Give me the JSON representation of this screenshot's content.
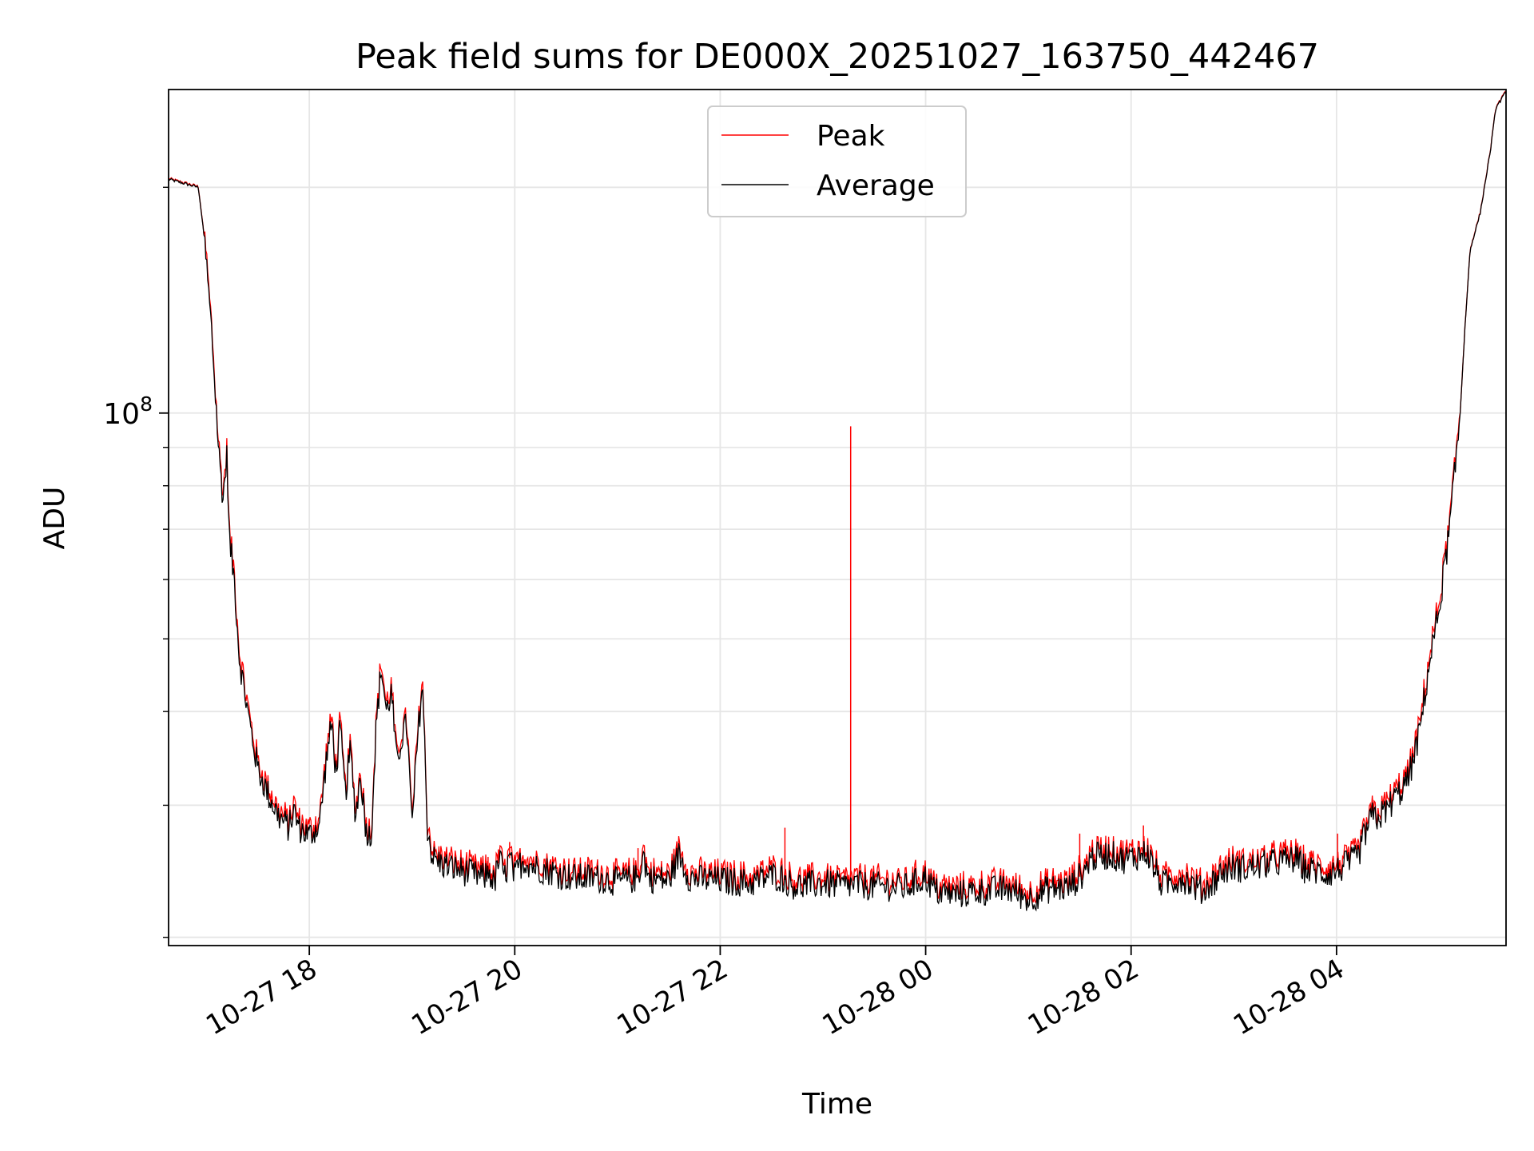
{
  "chart_data": {
    "type": "line",
    "title": "Peak field sums for DE000X_20251027_163750_442467",
    "xlabel": "Time",
    "ylabel": "ADU",
    "yscale": "log",
    "ylim": [
      19500000,
      270000000
    ],
    "grid": true,
    "legend": {
      "placement": "upper-center",
      "entries": [
        {
          "label": "Peak",
          "color": "#ff0000"
        },
        {
          "label": "Average",
          "color": "#000000"
        }
      ]
    },
    "x_unit": "hours since 2025-10-27 00:00",
    "xlim": [
      16.63,
      29.65
    ],
    "x_ticks": [
      {
        "value": 18,
        "label": "10-27 18"
      },
      {
        "value": 20,
        "label": "10-27 20"
      },
      {
        "value": 22,
        "label": "10-27 22"
      },
      {
        "value": 24,
        "label": "10-28 00"
      },
      {
        "value": 26,
        "label": "10-28 02"
      },
      {
        "value": 28,
        "label": "10-28 04"
      }
    ],
    "y_ticks": [
      {
        "value": 100000000,
        "base": "10",
        "exp": "8"
      }
    ],
    "y_minor_ticks": [
      20000000,
      30000000,
      40000000,
      50000000,
      60000000,
      70000000,
      80000000,
      90000000,
      200000000
    ],
    "series": [
      {
        "name": "Average",
        "color": "#000000",
        "x": [
          16.63,
          16.92,
          16.98,
          17.05,
          17.12,
          17.16,
          17.2,
          17.22,
          17.27,
          17.32,
          17.4,
          17.5,
          17.6,
          17.7,
          17.8,
          17.85,
          17.9,
          18.0,
          18.1,
          18.17,
          18.22,
          18.26,
          18.3,
          18.35,
          18.4,
          18.45,
          18.5,
          18.55,
          18.6,
          18.65,
          18.7,
          18.75,
          18.8,
          18.85,
          18.9,
          18.95,
          19.0,
          19.05,
          19.1,
          19.15,
          19.2,
          19.3,
          19.5,
          19.7,
          19.75,
          19.8,
          19.85,
          19.9,
          19.95,
          20.0,
          20.05,
          20.1,
          20.2,
          20.35,
          20.45,
          20.6,
          20.8,
          21.0,
          21.2,
          21.25,
          21.3,
          21.5,
          21.6,
          21.7,
          21.8,
          22.0,
          22.2,
          22.3,
          22.5,
          22.6,
          22.7,
          22.8,
          23.0,
          23.2,
          23.3,
          23.5,
          23.8,
          24.0,
          24.1,
          24.3,
          24.5,
          24.8,
          25.0,
          25.2,
          25.4,
          25.55,
          25.6,
          25.8,
          25.9,
          26.0,
          26.1,
          26.15,
          26.3,
          26.5,
          26.7,
          26.9,
          27.0,
          27.1,
          27.3,
          27.5,
          27.6,
          27.7,
          27.8,
          27.9,
          28.0,
          28.1,
          28.2,
          28.3,
          28.35,
          28.4,
          28.5,
          28.55,
          28.6,
          28.7,
          28.8,
          28.9,
          29.0,
          29.1,
          29.2,
          29.25,
          29.3,
          29.4,
          29.5,
          29.55,
          29.65
        ],
        "y": [
          205000000,
          200000000,
          170000000,
          128000000,
          88000000,
          77000000,
          88000000,
          68000000,
          60000000,
          47000000,
          40000000,
          33500000,
          31000000,
          29000000,
          28000000,
          29500000,
          28000000,
          27300000,
          28300000,
          35000000,
          38500000,
          33000000,
          38000000,
          31000000,
          35500000,
          29000000,
          33000000,
          28000000,
          27000000,
          38000000,
          46000000,
          40000000,
          42500000,
          34000000,
          37000000,
          38500000,
          28000000,
          36000000,
          44000000,
          28000000,
          25500000,
          25000000,
          24500000,
          24000000,
          24500000,
          23500000,
          25500000,
          24000000,
          25500000,
          24000000,
          25000000,
          25300000,
          24800000,
          24500000,
          24200000,
          24000000,
          24000000,
          23700000,
          24000000,
          25800000,
          24000000,
          23800000,
          25800000,
          24000000,
          23900000,
          23800000,
          23700000,
          23600000,
          24200000,
          24000000,
          23500000,
          23400000,
          23600000,
          23400000,
          23500000,
          23400000,
          23300000,
          24000000,
          23000000,
          22800000,
          23000000,
          23200000,
          22500000,
          23200000,
          23300000,
          24500000,
          25500000,
          25800000,
          25400000,
          25500000,
          25800000,
          26000000,
          23500000,
          24000000,
          23000000,
          24500000,
          24800000,
          24700000,
          25000000,
          25300000,
          25400000,
          24600000,
          24500000,
          24300000,
          24500000,
          25000000,
          25500000,
          28000000,
          29000000,
          28800000,
          29700000,
          30500000,
          31000000,
          32500000,
          37000000,
          46000000,
          55000000,
          70000000,
          98000000,
          130000000,
          165000000,
          185000000,
          225000000,
          255000000,
          268000000
        ]
      },
      {
        "name": "Peak",
        "color": "#ff0000",
        "spikes": [
          {
            "x": 23.27,
            "y": 96000000
          },
          {
            "x": 22.63,
            "y": 28000000
          },
          {
            "x": 25.5,
            "y": 27500000
          },
          {
            "x": 26.12,
            "y": 28200000
          },
          {
            "x": 28.01,
            "y": 27500000
          },
          {
            "x": 27.74,
            "y": 26000000
          },
          {
            "x": 19.95,
            "y": 26800000
          },
          {
            "x": 21.55,
            "y": 26200000
          },
          {
            "x": 21.2,
            "y": 26300000
          },
          {
            "x": 19.74,
            "y": 25600000
          },
          {
            "x": 19.84,
            "y": 26200000
          },
          {
            "x": 23.27,
            "y": 28300000
          }
        ]
      }
    ]
  }
}
